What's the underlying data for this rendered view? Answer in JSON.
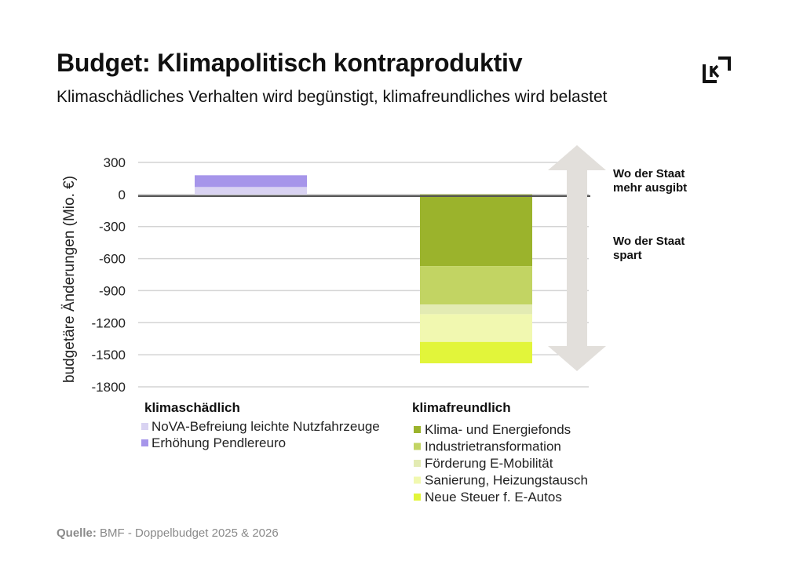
{
  "header": {
    "title": "Budget: Klimapolitisch kontraproduktiv",
    "subtitle": "Klimaschädliches Verhalten wird begünstigt, klimafreundliches wird belastet",
    "logo_icon": "kontrast-logo-icon"
  },
  "footer": {
    "source_label": "Quelle:",
    "source_text": "BMF - Doppelbudget 2025 & 2026"
  },
  "chart_data": {
    "type": "bar",
    "stacked": true,
    "title": "Budget: Klimapolitisch kontraproduktiv",
    "subtitle": "Klimaschädliches Verhalten wird begünstigt, klimafreundliches wird belastet",
    "ylabel": "budgetäre Änderungen (Mio. €)",
    "ylim": [
      -1800,
      300
    ],
    "yticks": [
      300,
      0,
      -300,
      -600,
      -900,
      -1200,
      -1500,
      -1800
    ],
    "grid": true,
    "categories": [
      "klimaschädlich",
      "klimafreundlich"
    ],
    "series": [
      {
        "name": "NoVA-Befreiung leichte Nutzfahrzeuge",
        "category": "klimaschädlich",
        "value": 70,
        "color": "#d9d3f2"
      },
      {
        "name": "Erhöhung Pendlereuro",
        "category": "klimaschädlich",
        "value": 110,
        "color": "#a695ea"
      },
      {
        "name": "Klima- und Energiefonds",
        "category": "klimafreundlich",
        "value": -670,
        "color": "#9bb32c"
      },
      {
        "name": "Industrietransformation",
        "category": "klimafreundlich",
        "value": -360,
        "color": "#c2d463"
      },
      {
        "name": "Förderung E-Mobilität",
        "category": "klimafreundlich",
        "value": -90,
        "color": "#e3ebb3"
      },
      {
        "name": "Sanierung, Heizungstausch",
        "category": "klimafreundlich",
        "value": -260,
        "color": "#f1f8b0"
      },
      {
        "name": "Neue Steuer f. E-Autos",
        "category": "klimafreundlich",
        "value": -200,
        "color": "#e2f53a"
      }
    ],
    "legend_position": "below",
    "annotations": {
      "up": "Wo der Staat mehr ausgibt",
      "down": "Wo der Staat spart"
    }
  }
}
